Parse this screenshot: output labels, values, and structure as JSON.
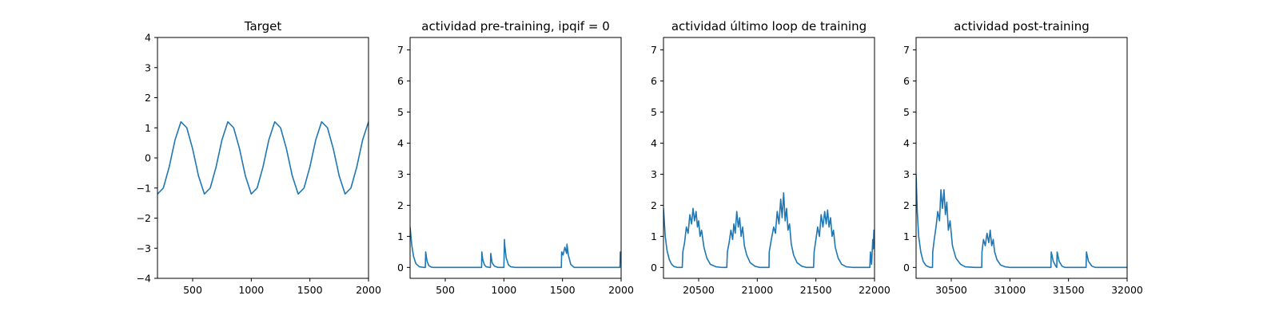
{
  "colors": {
    "series": "#1f77b4",
    "axis": "#000000",
    "background": "#ffffff"
  },
  "chart_data": [
    {
      "type": "line",
      "title": "Target",
      "xlabel": "",
      "ylabel": "",
      "xlim": [
        200,
        2000
      ],
      "ylim": [
        -4,
        4
      ],
      "xticks": [
        500,
        1000,
        1500,
        2000
      ],
      "yticks": [
        -4,
        -3,
        -2,
        -1,
        0,
        1,
        2,
        3,
        4
      ],
      "grid": false,
      "series": [
        {
          "x": [
            200,
            250,
            300,
            350,
            400,
            450,
            500,
            550,
            600,
            650,
            700,
            750,
            800,
            850,
            900,
            950,
            1000,
            1050,
            1100,
            1150,
            1200,
            1250,
            1300,
            1350,
            1400,
            1450,
            1500,
            1550,
            1600,
            1650,
            1700,
            1750,
            1800,
            1850,
            1900,
            1950,
            2000
          ],
          "y": [
            -1.2,
            -1.0,
            -0.3,
            0.6,
            1.2,
            1.0,
            0.3,
            -0.6,
            -1.2,
            -1.0,
            -0.3,
            0.6,
            1.2,
            1.0,
            0.3,
            -0.6,
            -1.2,
            -1.0,
            -0.3,
            0.6,
            1.2,
            1.0,
            0.3,
            -0.6,
            -1.2,
            -1.0,
            -0.3,
            0.6,
            1.2,
            1.0,
            0.3,
            -0.6,
            -1.2,
            -1.0,
            -0.3,
            0.6,
            1.2
          ]
        }
      ]
    },
    {
      "type": "line",
      "title": "actividad pre-training, ipqif = 0",
      "xlabel": "",
      "ylabel": "",
      "xlim": [
        200,
        2000
      ],
      "ylim": [
        -0.35,
        7.4
      ],
      "xticks": [
        500,
        1000,
        1500,
        2000
      ],
      "yticks": [
        0,
        1,
        2,
        3,
        4,
        5,
        6,
        7
      ],
      "grid": false,
      "series": [
        {
          "x": [
            200,
            215,
            230,
            250,
            280,
            320,
            330,
            333,
            345,
            360,
            380,
            400,
            810,
            812,
            820,
            835,
            850,
            880,
            885,
            888,
            900,
            920,
            950,
            1000,
            1005,
            1008,
            1020,
            1040,
            1060,
            1100,
            1490,
            1493,
            1505,
            1520,
            1535,
            1538,
            1550,
            1570,
            1600,
            1990,
            1993,
            2000
          ],
          "y": [
            1.3,
            0.7,
            0.35,
            0.12,
            0.02,
            0.0,
            0.0,
            0.5,
            0.2,
            0.06,
            0.01,
            0.0,
            0.0,
            0.5,
            0.25,
            0.08,
            0.02,
            0.0,
            0.0,
            0.45,
            0.15,
            0.04,
            0.0,
            0.0,
            0.9,
            0.7,
            0.3,
            0.08,
            0.02,
            0.0,
            0.0,
            0.5,
            0.4,
            0.65,
            0.45,
            0.75,
            0.4,
            0.1,
            0.0,
            0.0,
            0.5,
            0.4
          ]
        }
      ]
    },
    {
      "type": "line",
      "title": "actividad último loop de training",
      "xlabel": "",
      "ylabel": "",
      "xlim": [
        20200,
        22000
      ],
      "ylim": [
        -0.35,
        7.4
      ],
      "xticks": [
        20500,
        21000,
        21500,
        22000
      ],
      "yticks": [
        0,
        1,
        2,
        3,
        4,
        5,
        6,
        7
      ],
      "grid": false,
      "series": [
        {
          "x": [
            20200,
            20215,
            20230,
            20250,
            20270,
            20290,
            20320,
            20350,
            20360,
            20365,
            20380,
            20395,
            20410,
            20425,
            20440,
            20452,
            20465,
            20478,
            20490,
            20500,
            20512,
            20525,
            20545,
            20570,
            20600,
            20650,
            20700,
            20740,
            20745,
            20760,
            20775,
            20790,
            20800,
            20812,
            20825,
            20838,
            20850,
            20862,
            20875,
            20890,
            20910,
            20940,
            20980,
            21020,
            21090,
            21100,
            21102,
            21120,
            21140,
            21155,
            21170,
            21185,
            21200,
            21212,
            21225,
            21238,
            21250,
            21262,
            21275,
            21290,
            21310,
            21340,
            21380,
            21420,
            21480,
            21485,
            21500,
            21515,
            21530,
            21545,
            21560,
            21575,
            21588,
            21600,
            21612,
            21625,
            21638,
            21650,
            21665,
            21690,
            21720,
            21760,
            21820,
            21880,
            21960,
            21965,
            21970,
            21975,
            21985,
            21990,
            21995,
            22000
          ],
          "y": [
            1.9,
            1.0,
            0.55,
            0.25,
            0.1,
            0.03,
            0.0,
            0.0,
            0.0,
            0.5,
            0.8,
            1.3,
            1.1,
            1.7,
            1.4,
            1.9,
            1.5,
            1.8,
            1.3,
            1.5,
            1.0,
            1.2,
            0.65,
            0.3,
            0.1,
            0.02,
            0.0,
            0.0,
            0.5,
            0.8,
            1.2,
            0.9,
            1.4,
            1.1,
            1.8,
            1.3,
            1.6,
            1.0,
            1.3,
            0.7,
            0.4,
            0.15,
            0.04,
            0.0,
            0.0,
            0.0,
            0.5,
            0.9,
            1.3,
            1.1,
            1.8,
            1.4,
            2.2,
            1.6,
            2.4,
            1.5,
            1.9,
            1.2,
            1.4,
            0.75,
            0.4,
            0.15,
            0.04,
            0.0,
            0.0,
            0.5,
            0.9,
            1.3,
            1.0,
            1.7,
            1.3,
            1.8,
            1.4,
            1.85,
            1.3,
            1.6,
            1.0,
            1.2,
            0.65,
            0.3,
            0.1,
            0.02,
            0.0,
            0.0,
            0.0,
            0.5,
            0.3,
            0.1,
            0.9,
            0.6,
            1.2,
            0.8
          ]
        }
      ]
    },
    {
      "type": "line",
      "title": "actividad post-training",
      "xlabel": "",
      "ylabel": "",
      "xlim": [
        30200,
        32000
      ],
      "ylim": [
        -0.35,
        7.4
      ],
      "xticks": [
        30500,
        31000,
        31500,
        32000
      ],
      "yticks": [
        0,
        1,
        2,
        3,
        4,
        5,
        6,
        7
      ],
      "grid": false,
      "series": [
        {
          "x": [
            30200,
            30210,
            30222,
            30240,
            30260,
            30285,
            30320,
            30340,
            30342,
            30355,
            30370,
            30385,
            30400,
            30412,
            30425,
            30438,
            30450,
            30462,
            30475,
            30490,
            30510,
            30540,
            30580,
            30620,
            30700,
            30760,
            30762,
            30775,
            30790,
            30805,
            30820,
            30832,
            30845,
            30858,
            30870,
            30890,
            30920,
            30960,
            31000,
            31350,
            31353,
            31370,
            31390,
            31400,
            31403,
            31420,
            31445,
            31470,
            31650,
            31653,
            31670,
            31700,
            31730,
            32000
          ],
          "y": [
            3.0,
            1.8,
            1.0,
            0.5,
            0.2,
            0.06,
            0.0,
            0.0,
            0.5,
            0.9,
            1.3,
            1.8,
            1.5,
            2.5,
            1.9,
            2.5,
            1.7,
            2.1,
            1.2,
            1.5,
            0.7,
            0.3,
            0.1,
            0.02,
            0.0,
            0.0,
            0.5,
            0.9,
            0.7,
            1.1,
            0.8,
            1.2,
            0.7,
            0.9,
            0.5,
            0.25,
            0.08,
            0.02,
            0.0,
            0.0,
            0.5,
            0.2,
            0.05,
            0.0,
            0.5,
            0.2,
            0.04,
            0.0,
            0.0,
            0.5,
            0.2,
            0.04,
            0.0,
            0.0
          ]
        }
      ]
    }
  ]
}
